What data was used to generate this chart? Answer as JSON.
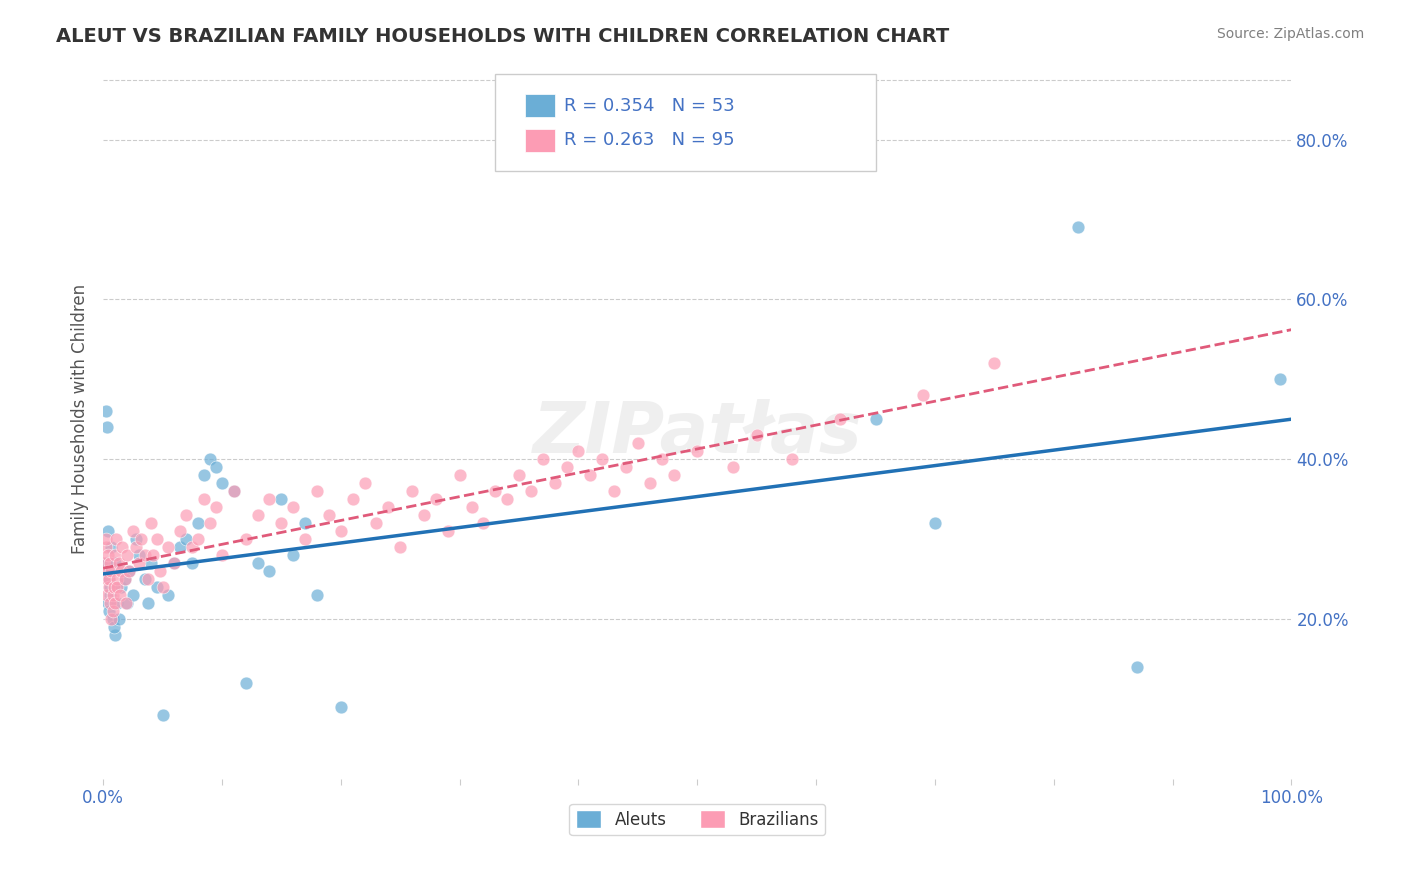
{
  "title": "ALEUT VS BRAZILIAN FAMILY HOUSEHOLDS WITH CHILDREN CORRELATION CHART",
  "source_text": "Source: ZipAtlas.com",
  "ylabel": "Family Households with Children",
  "aleut_color": "#6baed6",
  "aleut_color_line": "#2171b5",
  "brazilian_color": "#fc9cb4",
  "brazilian_color_line": "#e05a7a",
  "aleut_R": 0.354,
  "aleut_N": 53,
  "brazilian_R": 0.263,
  "brazilian_N": 95,
  "aleut_scatter_x": [
    0.002,
    0.003,
    0.004,
    0.003,
    0.005,
    0.006,
    0.004,
    0.005,
    0.007,
    0.006,
    0.005,
    0.008,
    0.01,
    0.009,
    0.012,
    0.015,
    0.01,
    0.013,
    0.02,
    0.018,
    0.025,
    0.03,
    0.022,
    0.028,
    0.035,
    0.04,
    0.038,
    0.045,
    0.05,
    0.055,
    0.06,
    0.065,
    0.07,
    0.075,
    0.08,
    0.085,
    0.09,
    0.095,
    0.1,
    0.11,
    0.12,
    0.13,
    0.14,
    0.15,
    0.16,
    0.17,
    0.18,
    0.2,
    0.65,
    0.7,
    0.82,
    0.87,
    0.99
  ],
  "aleut_scatter_y": [
    0.46,
    0.44,
    0.31,
    0.27,
    0.25,
    0.23,
    0.22,
    0.26,
    0.29,
    0.24,
    0.21,
    0.2,
    0.18,
    0.19,
    0.22,
    0.24,
    0.27,
    0.2,
    0.22,
    0.25,
    0.23,
    0.28,
    0.26,
    0.3,
    0.25,
    0.27,
    0.22,
    0.24,
    0.08,
    0.23,
    0.27,
    0.29,
    0.3,
    0.27,
    0.32,
    0.38,
    0.4,
    0.39,
    0.37,
    0.36,
    0.12,
    0.27,
    0.26,
    0.35,
    0.28,
    0.32,
    0.23,
    0.09,
    0.45,
    0.32,
    0.69,
    0.14,
    0.5
  ],
  "brazilian_scatter_x": [
    0.001,
    0.002,
    0.003,
    0.002,
    0.004,
    0.003,
    0.005,
    0.004,
    0.006,
    0.005,
    0.007,
    0.006,
    0.008,
    0.007,
    0.009,
    0.008,
    0.01,
    0.01,
    0.012,
    0.011,
    0.013,
    0.012,
    0.015,
    0.014,
    0.016,
    0.018,
    0.02,
    0.019,
    0.022,
    0.025,
    0.028,
    0.03,
    0.032,
    0.035,
    0.038,
    0.04,
    0.042,
    0.045,
    0.048,
    0.05,
    0.055,
    0.06,
    0.065,
    0.07,
    0.075,
    0.08,
    0.085,
    0.09,
    0.095,
    0.1,
    0.11,
    0.12,
    0.13,
    0.14,
    0.15,
    0.16,
    0.17,
    0.18,
    0.19,
    0.2,
    0.21,
    0.22,
    0.23,
    0.24,
    0.25,
    0.26,
    0.27,
    0.28,
    0.29,
    0.3,
    0.31,
    0.32,
    0.33,
    0.34,
    0.35,
    0.36,
    0.37,
    0.38,
    0.39,
    0.4,
    0.41,
    0.42,
    0.43,
    0.44,
    0.45,
    0.46,
    0.47,
    0.48,
    0.5,
    0.53,
    0.55,
    0.58,
    0.62,
    0.69,
    0.75
  ],
  "brazilian_scatter_y": [
    0.27,
    0.29,
    0.25,
    0.3,
    0.26,
    0.23,
    0.24,
    0.28,
    0.22,
    0.25,
    0.2,
    0.27,
    0.23,
    0.26,
    0.24,
    0.21,
    0.28,
    0.22,
    0.25,
    0.3,
    0.27,
    0.24,
    0.26,
    0.23,
    0.29,
    0.25,
    0.28,
    0.22,
    0.26,
    0.31,
    0.29,
    0.27,
    0.3,
    0.28,
    0.25,
    0.32,
    0.28,
    0.3,
    0.26,
    0.24,
    0.29,
    0.27,
    0.31,
    0.33,
    0.29,
    0.3,
    0.35,
    0.32,
    0.34,
    0.28,
    0.36,
    0.3,
    0.33,
    0.35,
    0.32,
    0.34,
    0.3,
    0.36,
    0.33,
    0.31,
    0.35,
    0.37,
    0.32,
    0.34,
    0.29,
    0.36,
    0.33,
    0.35,
    0.31,
    0.38,
    0.34,
    0.32,
    0.36,
    0.35,
    0.38,
    0.36,
    0.4,
    0.37,
    0.39,
    0.41,
    0.38,
    0.4,
    0.36,
    0.39,
    0.42,
    0.37,
    0.4,
    0.38,
    0.41,
    0.39,
    0.43,
    0.4,
    0.45,
    0.48,
    0.52
  ],
  "xlim": [
    0.0,
    1.0
  ],
  "ylim": [
    0.0,
    0.9
  ],
  "yticks_right": [
    0.2,
    0.4,
    0.6,
    0.8
  ],
  "yticklabels_right": [
    "20.0%",
    "40.0%",
    "60.0%",
    "80.0%"
  ],
  "background_color": "#ffffff",
  "grid_color": "#cccccc",
  "title_color": "#333333",
  "axis_label_color": "#4472c4",
  "legend_R_color": "#4472c4"
}
